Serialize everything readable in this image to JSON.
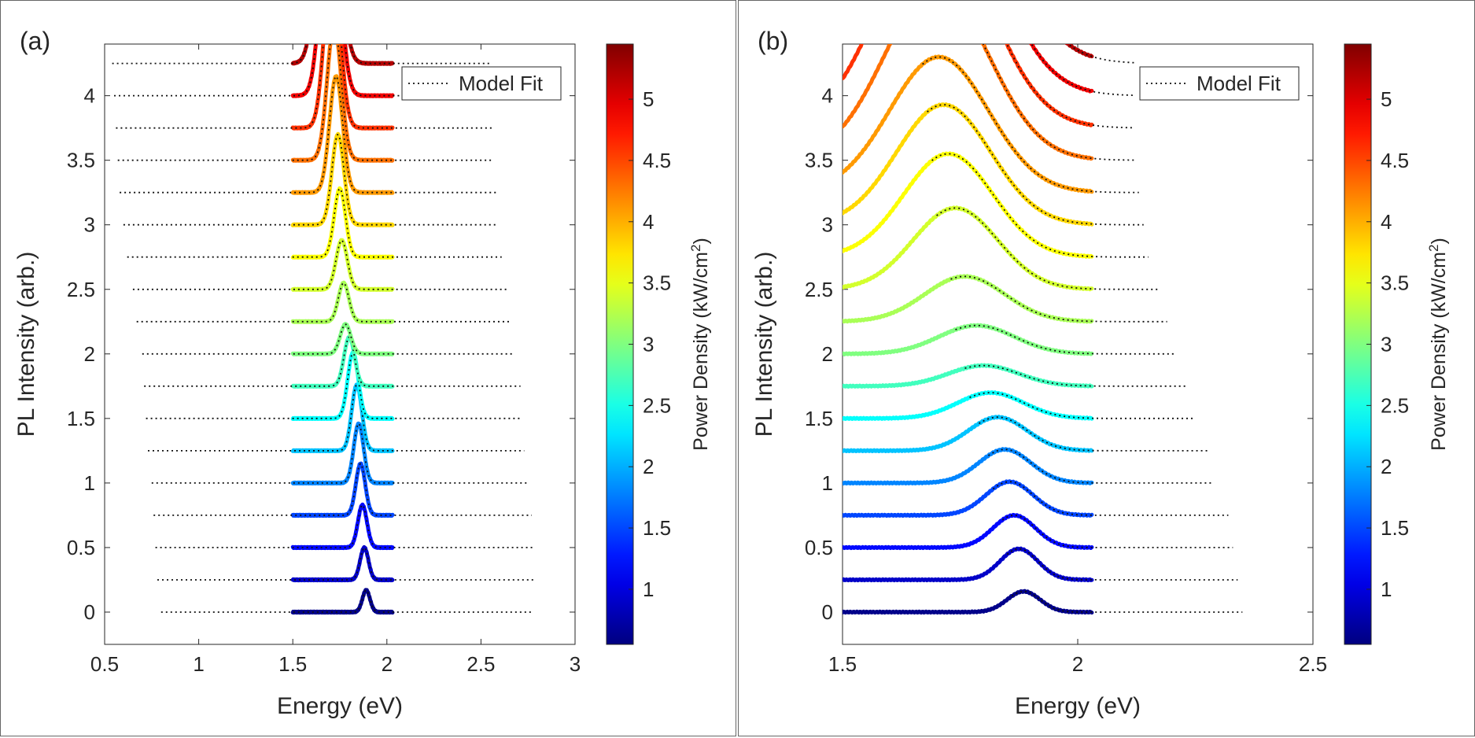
{
  "chart_data": [
    {
      "type": "line",
      "panel_label": "(a)",
      "xlabel": "Energy (eV)",
      "ylabel": "PL Intensity (arb.)",
      "xlim": [
        0.5,
        3
      ],
      "ylim": [
        -0.25,
        4.4
      ],
      "xticks": [
        "0.5",
        "1",
        "1.5",
        "2",
        "2.5",
        "3"
      ],
      "yticks": [
        "0",
        "0.5",
        "1",
        "1.5",
        "2",
        "2.5",
        "3",
        "3.5",
        "4"
      ],
      "legend": {
        "label": "Model Fit",
        "placement": "top-right"
      },
      "colorbar": {
        "label": "Power Density (kW/cm",
        "label_sup": "2",
        "label_end": ")",
        "min": 0.55,
        "max": 5.45,
        "ticks": [
          "1",
          "1.5",
          "2",
          "2.5",
          "3",
          "3.5",
          "4",
          "4.5",
          "5"
        ]
      },
      "data_range": [
        1.5,
        2.03
      ],
      "series": [
        {
          "offset": 0.0,
          "power": 0.6,
          "peak": 1.89,
          "width": 0.02,
          "amp": 0.17,
          "fit_range": [
            0.8,
            2.78
          ]
        },
        {
          "offset": 0.25,
          "power": 0.9,
          "peak": 1.88,
          "width": 0.022,
          "amp": 0.25,
          "fit_range": [
            0.78,
            2.78
          ]
        },
        {
          "offset": 0.5,
          "power": 1.2,
          "peak": 1.87,
          "width": 0.024,
          "amp": 0.33,
          "fit_range": [
            0.77,
            2.78
          ]
        },
        {
          "offset": 0.75,
          "power": 1.5,
          "peak": 1.86,
          "width": 0.025,
          "amp": 0.4,
          "fit_range": [
            0.76,
            2.77
          ]
        },
        {
          "offset": 1.0,
          "power": 1.8,
          "peak": 1.85,
          "width": 0.026,
          "amp": 0.46,
          "fit_range": [
            0.75,
            2.75
          ]
        },
        {
          "offset": 1.25,
          "power": 2.1,
          "peak": 1.84,
          "width": 0.027,
          "amp": 0.51,
          "fit_range": [
            0.73,
            2.73
          ]
        },
        {
          "offset": 1.5,
          "power": 2.4,
          "peak": 1.82,
          "width": 0.028,
          "amp": 0.51,
          "fit_range": [
            0.72,
            2.72
          ]
        },
        {
          "offset": 1.75,
          "power": 2.7,
          "peak": 1.8,
          "width": 0.028,
          "amp": 0.38,
          "fit_range": [
            0.71,
            2.71
          ]
        },
        {
          "offset": 2.0,
          "power": 3.0,
          "peak": 1.78,
          "width": 0.028,
          "amp": 0.23,
          "fit_range": [
            0.7,
            2.68
          ]
        },
        {
          "offset": 2.25,
          "power": 3.2,
          "peak": 1.77,
          "width": 0.028,
          "amp": 0.3,
          "fit_range": [
            0.67,
            2.66
          ]
        },
        {
          "offset": 2.5,
          "power": 3.4,
          "peak": 1.76,
          "width": 0.03,
          "amp": 0.38,
          "fit_range": [
            0.65,
            2.64
          ]
        },
        {
          "offset": 2.75,
          "power": 3.6,
          "peak": 1.75,
          "width": 0.03,
          "amp": 0.53,
          "fit_range": [
            0.62,
            2.61
          ]
        },
        {
          "offset": 3.0,
          "power": 3.8,
          "peak": 1.74,
          "width": 0.032,
          "amp": 0.7,
          "fit_range": [
            0.6,
            2.59
          ]
        },
        {
          "offset": 3.25,
          "power": 4.1,
          "peak": 1.73,
          "width": 0.035,
          "amp": 0.9,
          "fit_range": [
            0.58,
            2.58
          ]
        },
        {
          "offset": 3.5,
          "power": 4.3,
          "peak": 1.72,
          "width": 0.037,
          "amp": 1.05,
          "fit_range": [
            0.57,
            2.57
          ]
        },
        {
          "offset": 3.75,
          "power": 4.6,
          "peak": 1.71,
          "width": 0.04,
          "amp": 1.35,
          "fit_range": [
            0.56,
            2.56
          ]
        },
        {
          "offset": 4.0,
          "power": 4.9,
          "peak": 1.7,
          "width": 0.045,
          "amp": 1.8,
          "fit_range": [
            0.55,
            2.56
          ]
        },
        {
          "offset": 4.25,
          "power": 5.2,
          "peak": 1.69,
          "width": 0.05,
          "amp": 2.2,
          "fit_range": [
            0.54,
            2.56
          ]
        }
      ]
    },
    {
      "type": "line",
      "panel_label": "(b)",
      "xlabel": "Energy (eV)",
      "ylabel": "PL Intensity (arb.)",
      "xlim": [
        1.5,
        2.5
      ],
      "ylim": [
        -0.25,
        4.4
      ],
      "xticks": [
        "1.5",
        "2",
        "2.5"
      ],
      "yticks": [
        "0",
        "0.5",
        "1",
        "1.5",
        "2",
        "2.5",
        "3",
        "3.5",
        "4"
      ],
      "legend": {
        "label": "Model Fit",
        "placement": "top-right"
      },
      "colorbar": {
        "label": "Power Density (kW/cm",
        "label_sup": "2",
        "label_end": ")",
        "min": 0.55,
        "max": 5.45,
        "ticks": [
          "1",
          "1.5",
          "2",
          "2.5",
          "3",
          "3.5",
          "4",
          "4.5",
          "5"
        ]
      },
      "data_range": [
        1.5,
        2.03
      ],
      "series": [
        {
          "offset": 0.0,
          "power": 0.6,
          "peak": 1.885,
          "width": 0.035,
          "amp": 0.16,
          "fit_range": [
            1.86,
            2.35
          ]
        },
        {
          "offset": 0.25,
          "power": 0.9,
          "peak": 1.875,
          "width": 0.04,
          "amp": 0.24,
          "fit_range": [
            1.85,
            2.34
          ]
        },
        {
          "offset": 0.5,
          "power": 1.2,
          "peak": 1.865,
          "width": 0.045,
          "amp": 0.25,
          "fit_range": [
            1.84,
            2.33
          ]
        },
        {
          "offset": 0.75,
          "power": 1.5,
          "peak": 1.855,
          "width": 0.05,
          "amp": 0.26,
          "fit_range": [
            1.82,
            2.32
          ]
        },
        {
          "offset": 1.0,
          "power": 1.8,
          "peak": 1.845,
          "width": 0.055,
          "amp": 0.26,
          "fit_range": [
            1.81,
            2.29
          ]
        },
        {
          "offset": 1.25,
          "power": 2.1,
          "peak": 1.83,
          "width": 0.062,
          "amp": 0.26,
          "fit_range": [
            1.79,
            2.28
          ]
        },
        {
          "offset": 1.5,
          "power": 2.4,
          "peak": 1.815,
          "width": 0.07,
          "amp": 0.2,
          "fit_range": [
            1.77,
            2.25
          ]
        },
        {
          "offset": 1.75,
          "power": 2.7,
          "peak": 1.8,
          "width": 0.075,
          "amp": 0.16,
          "fit_range": [
            1.76,
            2.23
          ]
        },
        {
          "offset": 2.0,
          "power": 3.0,
          "peak": 1.785,
          "width": 0.08,
          "amp": 0.22,
          "fit_range": [
            1.74,
            2.21
          ]
        },
        {
          "offset": 2.25,
          "power": 3.2,
          "peak": 1.76,
          "width": 0.085,
          "amp": 0.35,
          "fit_range": [
            1.73,
            2.19
          ]
        },
        {
          "offset": 2.5,
          "power": 3.4,
          "peak": 1.74,
          "width": 0.09,
          "amp": 0.63,
          "fit_range": [
            1.7,
            2.17
          ]
        },
        {
          "offset": 2.75,
          "power": 3.6,
          "peak": 1.725,
          "width": 0.095,
          "amp": 0.8,
          "fit_range": [
            1.69,
            2.15
          ]
        },
        {
          "offset": 3.0,
          "power": 3.8,
          "peak": 1.715,
          "width": 0.1,
          "amp": 0.93,
          "fit_range": [
            1.68,
            2.14
          ]
        },
        {
          "offset": 3.25,
          "power": 4.1,
          "peak": 1.705,
          "width": 0.105,
          "amp": 1.05,
          "fit_range": [
            1.67,
            2.13
          ]
        },
        {
          "offset": 3.5,
          "power": 4.3,
          "peak": 1.7,
          "width": 0.11,
          "amp": 1.35,
          "fit_range": [
            1.66,
            2.12
          ]
        },
        {
          "offset": 3.75,
          "power": 4.6,
          "peak": 1.695,
          "width": 0.115,
          "amp": 1.6,
          "fit_range": [
            1.65,
            2.12
          ]
        },
        {
          "offset": 4.0,
          "power": 4.9,
          "peak": 1.69,
          "width": 0.12,
          "amp": 1.9,
          "fit_range": [
            1.64,
            2.12
          ]
        },
        {
          "offset": 4.25,
          "power": 5.2,
          "peak": 1.69,
          "width": 0.125,
          "amp": 2.2,
          "fit_range": [
            1.63,
            2.12
          ]
        }
      ]
    }
  ]
}
